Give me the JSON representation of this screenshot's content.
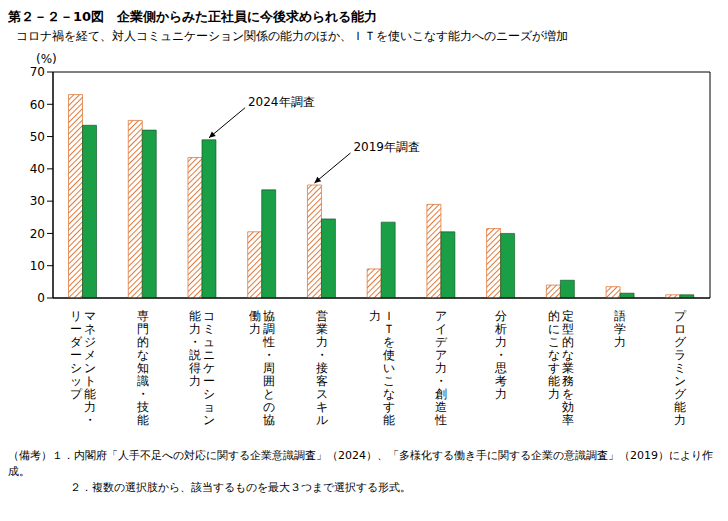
{
  "title": "第２－２－10図　企業側からみた正社員に今後求められる能力",
  "subtitle": "コロナ禍を経て、対人コミュニケーション関係の能力のほか、ＩＴを使いこなす能力へのニーズが増加",
  "notes": [
    "（備考）１．内閣府「人手不足への対応に関する企業意識調査」（2024）、「多様化する働き手に関する企業の意識調査」（2019）により作成。",
    "２．複数の選択肢から、該当するものを最大３つまで選択する形式。"
  ],
  "chart_data": {
    "type": "bar",
    "y_label": "(%)",
    "categories": [
      "マネジメント能力・リーダーシップ",
      "専門的な知識・技能",
      "コミュニケーション能力・説得力",
      "協調性・周囲との協働力",
      "営業力・接客スキル",
      "ＩＴを使いこなす能力",
      "アイデア力・創造性",
      "分析力・思考力",
      "定型的な業務を効率的にこなす能力",
      "語学力",
      "プログラミング能力"
    ],
    "series": [
      {
        "name": "2019年調査",
        "color": "#e07a3c",
        "values": [
          63,
          55,
          43.5,
          20.5,
          35,
          9,
          29,
          21.5,
          4,
          3.5,
          1
        ]
      },
      {
        "name": "2024年調査",
        "color": "#1a9f46",
        "values": [
          53.5,
          52,
          49,
          33.5,
          24.5,
          23.5,
          20.5,
          20,
          5.5,
          1.5,
          1
        ]
      }
    ],
    "annotations": [
      {
        "text": "2024年調査",
        "category": "コミュニケーション能力・説得力"
      },
      {
        "text": "2019年調査",
        "category": "営業力・接客スキル"
      }
    ],
    "ylim": [
      0,
      70
    ],
    "yticks": [
      0,
      10,
      20,
      30,
      40,
      50,
      60,
      70
    ],
    "grid": false
  }
}
